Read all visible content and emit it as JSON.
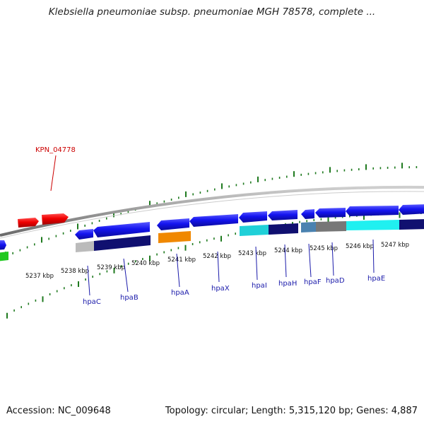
{
  "header": {
    "title": "Klebsiella pneumoniae subsp. pneumoniae MGH 78578, complete ..."
  },
  "footer": {
    "accession": "Accession: NC_009648",
    "topology": "Topology: circular; Length: 5,315,120 bp; Genes: 4,887"
  },
  "scale_labels": [
    "5237 kbp",
    "5238 kbp",
    "5239 kbp",
    "5240 kbp",
    "5241 kbp",
    "5242 kbp",
    "5243 kbp",
    "5244 kbp",
    "5245 kbp",
    "5246 kbp",
    "5247 kbp"
  ],
  "gene_labels": {
    "KPN_04778": "KPN_04778",
    "hpaC": "hpaC",
    "hpaB": "hpaB",
    "hpaA": "hpaA",
    "hpaX": "hpaX",
    "hpaI": "hpaI",
    "hpaH": "hpaH",
    "hpaF": "hpaF",
    "hpaD": "hpaD",
    "hpaE": "hpaE"
  },
  "colors": {
    "forward_gene": "#1010ee",
    "reverse_gene": "#ee0000",
    "tick": "#1f7a1f",
    "backbone": "#888888",
    "label_line_blue": "#1a1aaa",
    "label_line_red": "#cc0000",
    "cog_navy": "#101070",
    "cog_cyan": "#20d0d8",
    "cog_gray": "#777777",
    "cog_lightgray": "#bbbbbb",
    "cog_orange": "#f08800",
    "cog_steel": "#4a82b0"
  }
}
